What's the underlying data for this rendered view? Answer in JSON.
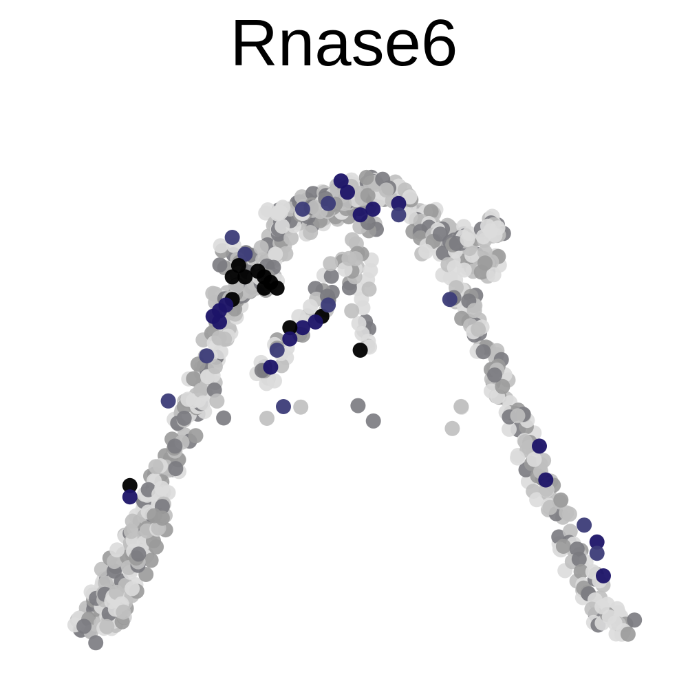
{
  "chart_data": {
    "type": "scatter",
    "title": "Rnase6",
    "xlabel": "",
    "ylabel": "",
    "grid": false,
    "legend": "none",
    "colors": {
      "lowest": "#dcdcdc",
      "low": "#bfbfbf",
      "mid": "#9a9a9a",
      "midhigh": "#7a7a80",
      "high": "#3c3c78",
      "higher": "#1c1468",
      "top": "#000000"
    },
    "expression_levels": [
      "lowest",
      "low",
      "mid",
      "midhigh",
      "high",
      "higher",
      "top"
    ],
    "trajectory_branches": [
      {
        "name": "left-arm",
        "points": [
          [
            8,
            6
          ],
          [
            11,
            10
          ],
          [
            14,
            16
          ],
          [
            17,
            22
          ],
          [
            20,
            29
          ],
          [
            23,
            37
          ],
          [
            26,
            46
          ],
          [
            29,
            55
          ],
          [
            32,
            63
          ],
          [
            36,
            70
          ],
          [
            41,
            76
          ],
          [
            47,
            80
          ],
          [
            53,
            82
          ]
        ],
        "density": "dense"
      },
      {
        "name": "left-arm-inner",
        "points": [
          [
            12,
            4
          ],
          [
            14,
            9
          ],
          [
            16,
            14
          ],
          [
            19,
            21
          ],
          [
            22,
            30
          ]
        ],
        "density": "medium"
      },
      {
        "name": "top-bridge",
        "points": [
          [
            38,
            78
          ],
          [
            43,
            80
          ],
          [
            48,
            82
          ],
          [
            53,
            84
          ],
          [
            58,
            82
          ],
          [
            63,
            77
          ],
          [
            68,
            72
          ],
          [
            73,
            69
          ]
        ],
        "density": "dense"
      },
      {
        "name": "right-branch-tip",
        "points": [
          [
            62,
            74
          ],
          [
            66,
            74
          ],
          [
            70,
            76
          ],
          [
            74,
            78
          ]
        ],
        "density": "medium"
      },
      {
        "name": "right-arm",
        "points": [
          [
            66,
            70
          ],
          [
            69,
            62
          ],
          [
            72,
            54
          ],
          [
            75,
            46
          ],
          [
            78,
            38
          ],
          [
            81,
            30
          ],
          [
            84,
            22
          ],
          [
            87,
            14
          ],
          [
            90,
            8
          ],
          [
            94,
            6
          ]
        ],
        "density": "medium"
      },
      {
        "name": "middle-spur",
        "points": [
          [
            53,
            77
          ],
          [
            52,
            70
          ],
          [
            52,
            62
          ],
          [
            52,
            56
          ]
        ],
        "density": "light"
      },
      {
        "name": "center-spur",
        "points": [
          [
            50,
            72
          ],
          [
            47,
            66
          ],
          [
            43,
            60
          ],
          [
            39,
            54
          ],
          [
            37,
            50
          ]
        ],
        "density": "light"
      },
      {
        "name": "upper-left-cluster",
        "points": [
          [
            31,
            72
          ],
          [
            33,
            70
          ],
          [
            35,
            67
          ],
          [
            37,
            68
          ],
          [
            39,
            69
          ],
          [
            30,
            64
          ],
          [
            32,
            62
          ]
        ],
        "density": "light"
      },
      {
        "name": "isolated-dots",
        "points": [
          [
            28,
            54
          ],
          [
            27,
            45
          ],
          [
            41,
            44
          ],
          [
            66,
            43
          ],
          [
            68,
            43
          ]
        ],
        "density": "sparse"
      }
    ],
    "highlight_points": [
      {
        "x": 49,
        "y": 85,
        "level": "higher"
      },
      {
        "x": 50,
        "y": 83,
        "level": "higher"
      },
      {
        "x": 52,
        "y": 79,
        "level": "higher"
      },
      {
        "x": 54,
        "y": 80,
        "level": "higher"
      },
      {
        "x": 58,
        "y": 81,
        "level": "higher"
      },
      {
        "x": 58,
        "y": 79,
        "level": "high"
      },
      {
        "x": 32,
        "y": 75,
        "level": "high"
      },
      {
        "x": 34,
        "y": 72,
        "level": "high"
      },
      {
        "x": 33,
        "y": 70,
        "level": "top"
      },
      {
        "x": 32,
        "y": 68,
        "level": "top"
      },
      {
        "x": 34,
        "y": 68,
        "level": "top"
      },
      {
        "x": 36,
        "y": 69,
        "level": "top"
      },
      {
        "x": 37,
        "y": 68,
        "level": "top"
      },
      {
        "x": 38,
        "y": 67,
        "level": "top"
      },
      {
        "x": 37,
        "y": 66,
        "level": "top"
      },
      {
        "x": 39,
        "y": 66,
        "level": "top"
      },
      {
        "x": 32,
        "y": 64,
        "level": "top"
      },
      {
        "x": 31,
        "y": 63,
        "level": "higher"
      },
      {
        "x": 30,
        "y": 62,
        "level": "higher"
      },
      {
        "x": 29,
        "y": 61,
        "level": "higher"
      },
      {
        "x": 30,
        "y": 60,
        "level": "higher"
      },
      {
        "x": 46,
        "y": 61,
        "level": "top"
      },
      {
        "x": 45,
        "y": 60,
        "level": "higher"
      },
      {
        "x": 43,
        "y": 59,
        "level": "higher"
      },
      {
        "x": 41,
        "y": 59,
        "level": "top"
      },
      {
        "x": 41,
        "y": 57,
        "level": "higher"
      },
      {
        "x": 39,
        "y": 55,
        "level": "high"
      },
      {
        "x": 38,
        "y": 52,
        "level": "higher"
      },
      {
        "x": 47,
        "y": 63,
        "level": "high"
      },
      {
        "x": 52,
        "y": 55,
        "level": "top"
      },
      {
        "x": 28,
        "y": 54,
        "level": "high"
      },
      {
        "x": 40,
        "y": 45,
        "level": "high"
      },
      {
        "x": 22,
        "y": 46,
        "level": "high"
      },
      {
        "x": 16,
        "y": 31,
        "level": "top"
      },
      {
        "x": 16,
        "y": 29,
        "level": "higher"
      },
      {
        "x": 66,
        "y": 64,
        "level": "high"
      },
      {
        "x": 80,
        "y": 38,
        "level": "higher"
      },
      {
        "x": 81,
        "y": 32,
        "level": "higher"
      },
      {
        "x": 87,
        "y": 24,
        "level": "high"
      },
      {
        "x": 89,
        "y": 21,
        "level": "higher"
      },
      {
        "x": 89,
        "y": 19,
        "level": "high"
      },
      {
        "x": 90,
        "y": 15,
        "level": "higher"
      },
      {
        "x": 43,
        "y": 80,
        "level": "high"
      },
      {
        "x": 47,
        "y": 81,
        "level": "high"
      }
    ],
    "xlim": [
      0,
      100
    ],
    "ylim": [
      0,
      100
    ]
  }
}
